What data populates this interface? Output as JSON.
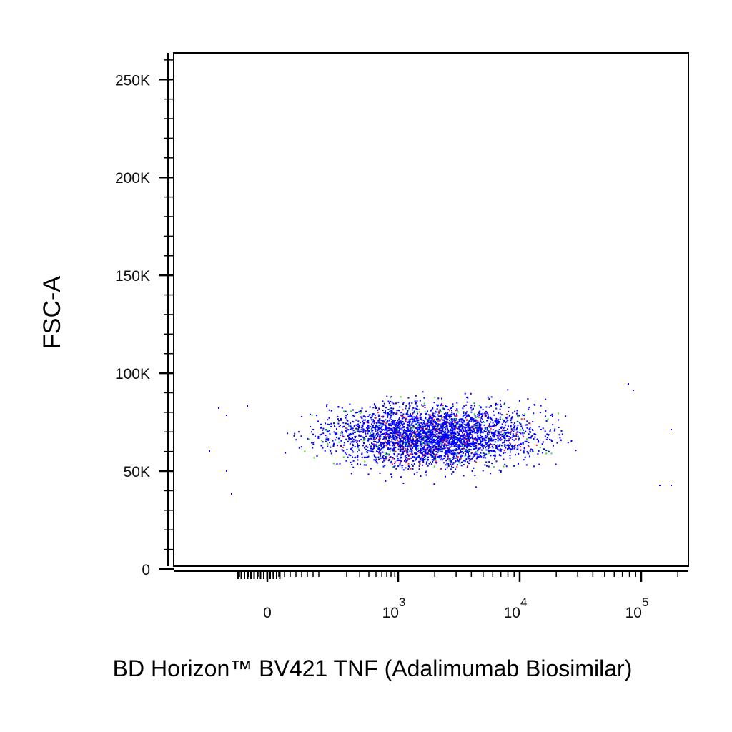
{
  "chart_data": {
    "type": "scatter",
    "title": "",
    "xlabel": "BD Horizon™ BV421 TNF (Adalimumab Biosimilar)",
    "ylabel": "FSC-A",
    "x_scale": "biexponential",
    "xlim": [
      -500,
      150000
    ],
    "ylim": [
      0,
      262144
    ],
    "y_ticks": [
      {
        "value": 0,
        "label": "0"
      },
      {
        "value": 50000,
        "label": "50K"
      },
      {
        "value": 100000,
        "label": "100K"
      },
      {
        "value": 150000,
        "label": "150K"
      },
      {
        "value": 200000,
        "label": "200K"
      },
      {
        "value": 250000,
        "label": "250K"
      }
    ],
    "x_ticks": [
      {
        "value": 0,
        "label": "0",
        "exp": ""
      },
      {
        "value": 1000,
        "label": "10",
        "exp": "3"
      },
      {
        "value": 10000,
        "label": "10",
        "exp": "4"
      },
      {
        "value": 100000,
        "label": "10",
        "exp": "5"
      }
    ],
    "grid": false,
    "population": {
      "x_center": 1500,
      "x_range": [
        -400,
        120000
      ],
      "y_center": 68000,
      "y_range": [
        36000,
        100000
      ]
    },
    "density_colors": {
      "low": "#0000ff",
      "medium": "#33dd33",
      "high": "#ff2222"
    }
  }
}
